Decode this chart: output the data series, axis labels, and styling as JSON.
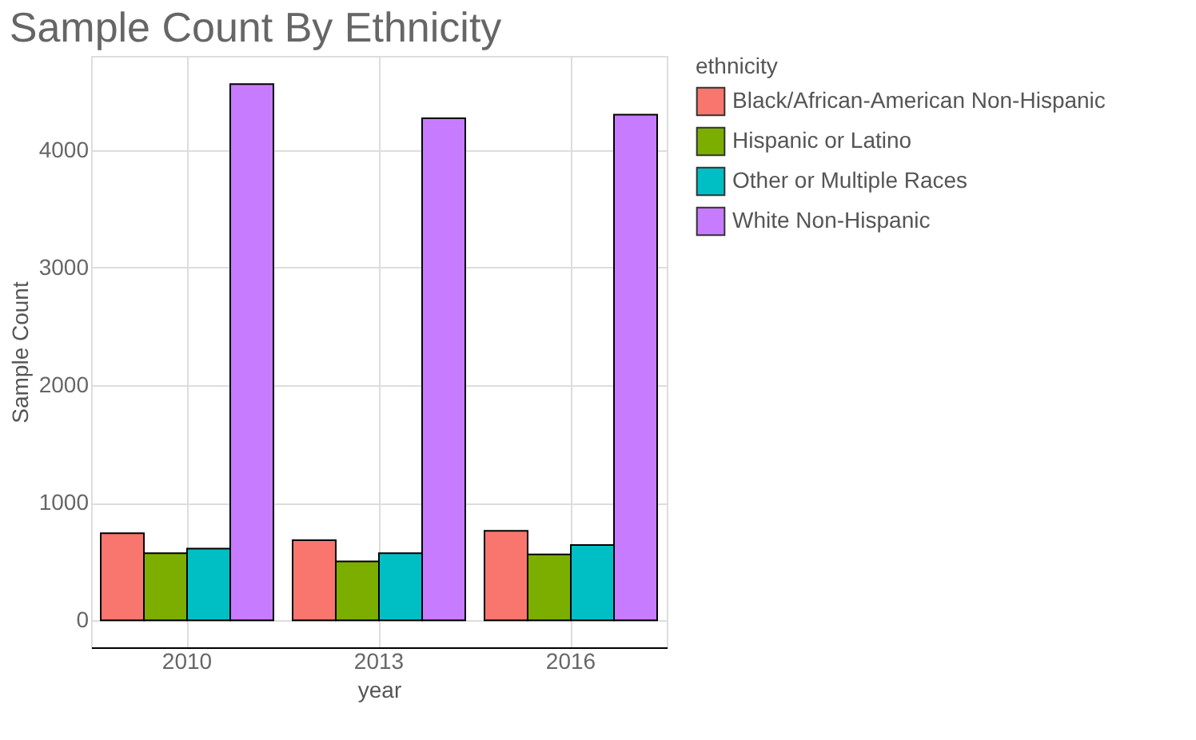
{
  "chart_data": {
    "type": "bar",
    "title": "Sample Count By Ethnicity",
    "xlabel": "year",
    "ylabel": "Sample Count",
    "legend_title": "ethnicity",
    "categories": [
      "2010",
      "2013",
      "2016"
    ],
    "series": [
      {
        "name": "Black/African-American Non-Hispanic",
        "color": "#f8766d",
        "values": [
          740,
          680,
          760
        ]
      },
      {
        "name": "Hispanic or Latino",
        "color": "#7cae00",
        "values": [
          570,
          500,
          560
        ]
      },
      {
        "name": "Other or Multiple Races",
        "color": "#00bfc4",
        "values": [
          610,
          570,
          640
        ]
      },
      {
        "name": "White Non-Hispanic",
        "color": "#c77cff",
        "values": [
          4560,
          4270,
          4300
        ]
      }
    ],
    "ylim": [
      -230,
      4800
    ],
    "yticks": [
      0,
      1000,
      2000,
      3000,
      4000
    ],
    "grid": true,
    "legend": "right"
  }
}
